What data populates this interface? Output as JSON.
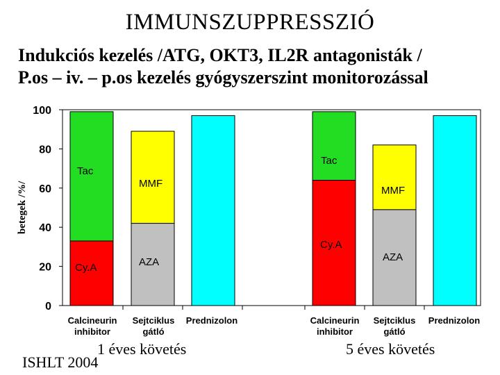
{
  "slide": {
    "title": "IMMUNSZUPPRESSZIÓ",
    "subtitle_line1": "Indukciós kezelés /ATG, OKT3, IL2R antagonisták /",
    "subtitle_line2": "P.os – iv. – p.os kezelés gyógyszerszint monitorozással",
    "source": "ISHLT 2004",
    "group1_label": "1 éves követés",
    "group2_label": "5 éves követés"
  },
  "chart_data": {
    "type": "bar",
    "stacked": true,
    "ylabel": "betegek /%/",
    "ylim": [
      0,
      100
    ],
    "yticks": [
      0,
      20,
      40,
      60,
      80,
      100
    ],
    "grid": false,
    "groups": [
      {
        "label": "1 éves követés",
        "bars": [
          {
            "category": "Calcineurin inhibitor",
            "segments": [
              {
                "label": "Cy.A",
                "value": 33,
                "color": "#ff0000"
              },
              {
                "label": "Tac",
                "value": 66,
                "color": "#22dd22"
              }
            ]
          },
          {
            "category": "Sejtciklus gátló",
            "segments": [
              {
                "label": "AZA",
                "value": 42,
                "color": "#c0c0c0"
              },
              {
                "label": "MMF",
                "value": 47,
                "color": "#ffff00"
              }
            ]
          },
          {
            "category": "Prednizolon",
            "segments": [
              {
                "label": "",
                "value": 97,
                "color": "#00ffff"
              }
            ]
          }
        ]
      },
      {
        "label": "5 éves követés",
        "bars": [
          {
            "category": "Calcineurin inhibitor",
            "segments": [
              {
                "label": "Cy.A",
                "value": 64,
                "color": "#ff0000"
              },
              {
                "label": "Tac",
                "value": 35,
                "color": "#22dd22"
              }
            ]
          },
          {
            "category": "Sejtciklus gátló",
            "segments": [
              {
                "label": "AZA",
                "value": 49,
                "color": "#c0c0c0"
              },
              {
                "label": "MMF",
                "value": 33,
                "color": "#ffff00"
              }
            ]
          },
          {
            "category": "Prednizolon",
            "segments": [
              {
                "label": "",
                "value": 97,
                "color": "#00ffff"
              }
            ]
          }
        ]
      }
    ]
  }
}
